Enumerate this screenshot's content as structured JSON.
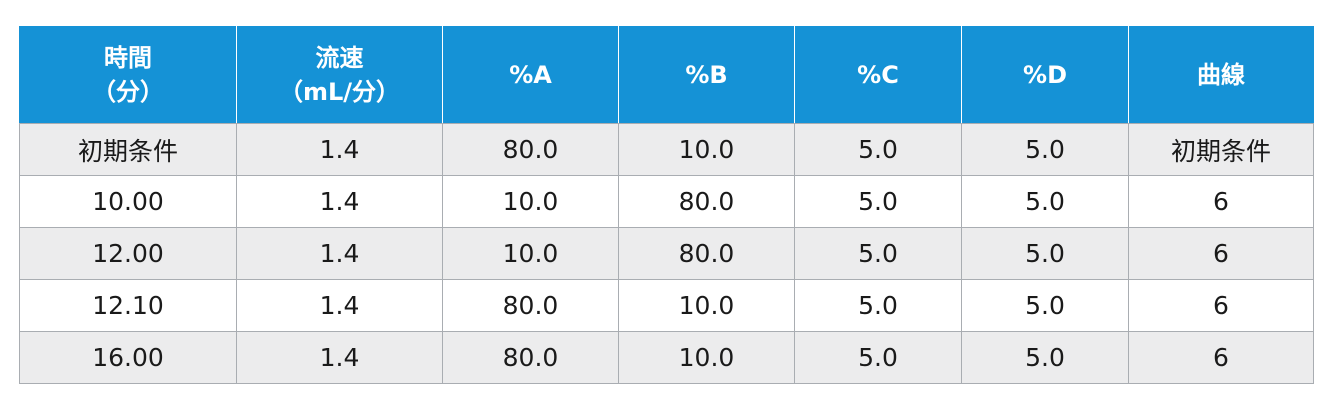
{
  "table": {
    "headers": [
      {
        "line1": "時間",
        "line2": "（分）"
      },
      {
        "line1": "流速",
        "line2": "（mL/分）"
      },
      {
        "line1": "%A",
        "line2": ""
      },
      {
        "line1": "%B",
        "line2": ""
      },
      {
        "line1": "%C",
        "line2": ""
      },
      {
        "line1": "%D",
        "line2": ""
      },
      {
        "line1": "曲線",
        "line2": ""
      }
    ],
    "rows": [
      [
        "初期条件",
        "1.4",
        "80.0",
        "10.0",
        "5.0",
        "5.0",
        "初期条件"
      ],
      [
        "10.00",
        "1.4",
        "10.0",
        "80.0",
        "5.0",
        "5.0",
        "6"
      ],
      [
        "12.00",
        "1.4",
        "10.0",
        "80.0",
        "5.0",
        "5.0",
        "6"
      ],
      [
        "12.10",
        "1.4",
        "80.0",
        "10.0",
        "5.0",
        "5.0",
        "6"
      ],
      [
        "16.00",
        "1.4",
        "80.0",
        "10.0",
        "5.0",
        "5.0",
        "6"
      ]
    ]
  },
  "colors": {
    "header_bg": "#1592d6",
    "header_text": "#ffffff",
    "row_shade": "#ececed",
    "border": "#a9adb2"
  }
}
